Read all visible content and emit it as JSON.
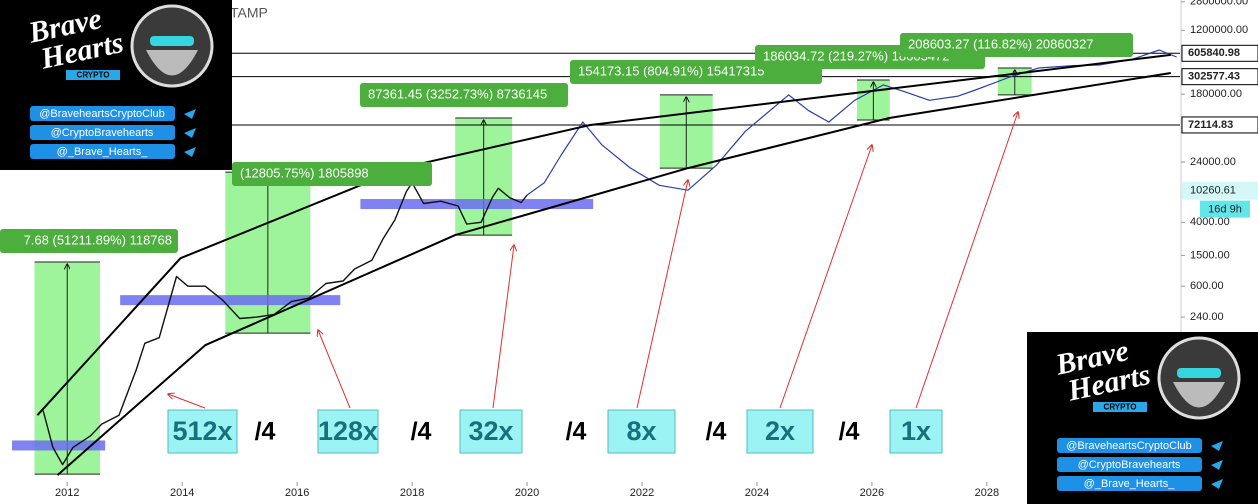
{
  "chart_data": {
    "type": "line",
    "title": "TAMP",
    "log_scale": true,
    "xlim": [
      2010.83,
      2031.36
    ],
    "xticks": [
      2012,
      2014,
      2016,
      2018,
      2020,
      2022,
      2024,
      2026,
      2028
    ],
    "ylim": [
      1.9,
      2950000
    ],
    "yticks": [
      {
        "value": 2800000,
        "label": "2800000.00"
      },
      {
        "value": 1200000,
        "label": "1200000.00"
      },
      {
        "value": 180000,
        "label": "180000.00"
      },
      {
        "value": 24000,
        "label": "24000.00"
      },
      {
        "value": 4000,
        "label": "4000.00"
      },
      {
        "value": 1500,
        "label": "1500.00"
      },
      {
        "value": 600,
        "label": "600.00"
      },
      {
        "value": 240,
        "label": "240.00"
      }
    ],
    "levels": [
      605840.98,
      302577.43,
      72114.83
    ],
    "last_price": 10260.61,
    "countdown": "16d 9h",
    "series": [
      {
        "color": "#111111",
        "x": [
          2011.58,
          2011.75,
          2011.92,
          2012.1,
          2012.4,
          2012.6,
          2012.9,
          2013.2,
          2013.35,
          2013.6,
          2013.9,
          2014.1,
          2014.4,
          2014.7,
          2015.0,
          2015.3,
          2015.6,
          2015.9,
          2016.2,
          2016.5,
          2016.8,
          2017.0,
          2017.3,
          2017.5,
          2017.7,
          2017.9,
          2018.0,
          2018.2,
          2018.5,
          2018.8,
          2018.95,
          2019.2,
          2019.4,
          2019.5,
          2019.7,
          2019.9,
          2020.0
        ],
        "values": [
          15,
          5,
          3,
          5,
          7,
          10,
          13,
          50,
          110,
          130,
          800,
          600,
          600,
          400,
          230,
          240,
          260,
          380,
          420,
          650,
          700,
          1000,
          1300,
          2500,
          4300,
          10000,
          13000,
          7000,
          7500,
          6500,
          3800,
          4000,
          8500,
          11000,
          8300,
          7200,
          9000
        ]
      },
      {
        "color": "#2b3fa8",
        "x": [
          2020.0,
          2020.3,
          2020.6,
          2020.97,
          2021.3,
          2021.8,
          2022.3,
          2022.8,
          2023.3,
          2023.8,
          2024.55,
          2024.9,
          2025.25,
          2025.7,
          2026.2,
          2026.6,
          2027.0,
          2027.5,
          2027.8,
          2028.4,
          2028.9,
          2029.5,
          2029.95,
          2030.5,
          2031.0,
          2031.3
        ],
        "values": [
          9000,
          13000,
          30000,
          78700,
          40000,
          20000,
          12000,
          10400,
          22000,
          60000,
          176000,
          110000,
          78700,
          150000,
          237000,
          190000,
          150000,
          170000,
          204000,
          300000,
          392000,
          420000,
          428000,
          500000,
          668000,
          543000
        ]
      },
      {
        "color": "#000000",
        "x": [
          2011.48,
          2013.97,
          2017.88,
          2021.1,
          2031.2
        ],
        "values": [
          13,
          1380,
          20600,
          72100,
          577000
        ]
      },
      {
        "color": "#000000",
        "x": [
          2011.83,
          2014.4,
          2018.75,
          2022.8,
          2026.3,
          2031.2
        ],
        "values": [
          2.2,
          104,
          2740,
          20000,
          88700,
          337000
        ]
      }
    ],
    "zones": [
      {
        "x": [
          2011.04,
          2012.66
        ],
        "value": 5.3
      },
      {
        "x": [
          2012.92,
          2016.75
        ],
        "value": 397
      },
      {
        "x": [
          2017.1,
          2021.15
        ],
        "value": 6890
      }
    ],
    "boxes": [
      {
        "x": [
          2011.43,
          2012.57
        ],
        "y": [
          2.26,
          1230
        ],
        "label": "7.68 (51211.89%) 118768"
      },
      {
        "x": [
          2014.75,
          2016.23
        ],
        "y": [
          149,
          17800
        ],
        "label": "(12805.75%) 1805898"
      },
      {
        "x": [
          2018.75,
          2019.74
        ],
        "y": [
          2740,
          88700
        ],
        "label": "87361.45 (3252.73%) 8736145"
      },
      {
        "x": [
          2022.31,
          2023.23
        ],
        "y": [
          20000,
          176000
        ],
        "label": "154173.15 (804.91%) 15417315"
      },
      {
        "x": [
          2025.74,
          2026.31
        ],
        "y": [
          83600,
          274000
        ],
        "label": "186034.72 (219.27%) 18603472"
      },
      {
        "x": [
          2028.19,
          2028.78
        ],
        "y": [
          176000,
          392000
        ],
        "label": "208603.27 (116.82%) 20860327"
      }
    ],
    "multipliers": [
      "512x",
      "128x",
      "32x",
      "8x",
      "2x",
      "1x"
    ],
    "divider": "/4"
  },
  "branding": {
    "line1": "Brave",
    "line2": "Hearts",
    "tag": "CRYPTO",
    "handles": [
      "@BraveheartsCryptoClub",
      "@CryptoBravehearts",
      "@_Brave_Hearts_"
    ]
  }
}
